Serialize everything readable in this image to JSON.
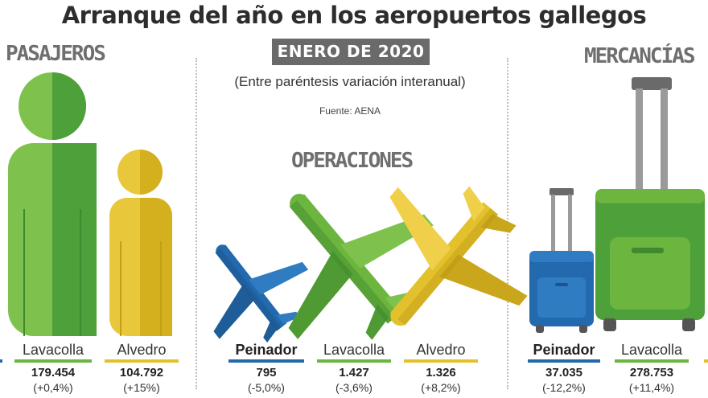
{
  "title": "Arranque del año en los aeropuertos gallegos",
  "date_badge": "ENERO DE 2020",
  "subtitle": "(Entre paréntesis variación interanual)",
  "source": "Fuente: AENA",
  "colors": {
    "Peinador": "#2369ad",
    "Lavacolla": "#6cb53f",
    "Alvedro": "#e3c12d",
    "heading_grey": "#6f6f6f",
    "badge_grey": "#6a6a6a"
  },
  "pasajeros": {
    "title": "PASAJEROS",
    "items": [
      {
        "airport": "Lavacolla",
        "value": "179.454",
        "change": "(+0,4%)"
      },
      {
        "airport": "Alvedro",
        "value": "104.792",
        "change": "(+15%)"
      }
    ]
  },
  "operaciones": {
    "title": "OPERACIONES",
    "items": [
      {
        "airport": "Peinador",
        "value": "795",
        "change": "(-5,0%)"
      },
      {
        "airport": "Lavacolla",
        "value": "1.427",
        "change": "(-3,6%)"
      },
      {
        "airport": "Alvedro",
        "value": "1.326",
        "change": "(+8,2%)"
      }
    ]
  },
  "mercancias": {
    "title": "MERCANCÍAS",
    "items": [
      {
        "airport": "Peinador",
        "value": "37.035",
        "change": "(-12,2%)"
      },
      {
        "airport": "Lavacolla",
        "value": "278.753",
        "change": "(+11,4%)"
      }
    ]
  }
}
